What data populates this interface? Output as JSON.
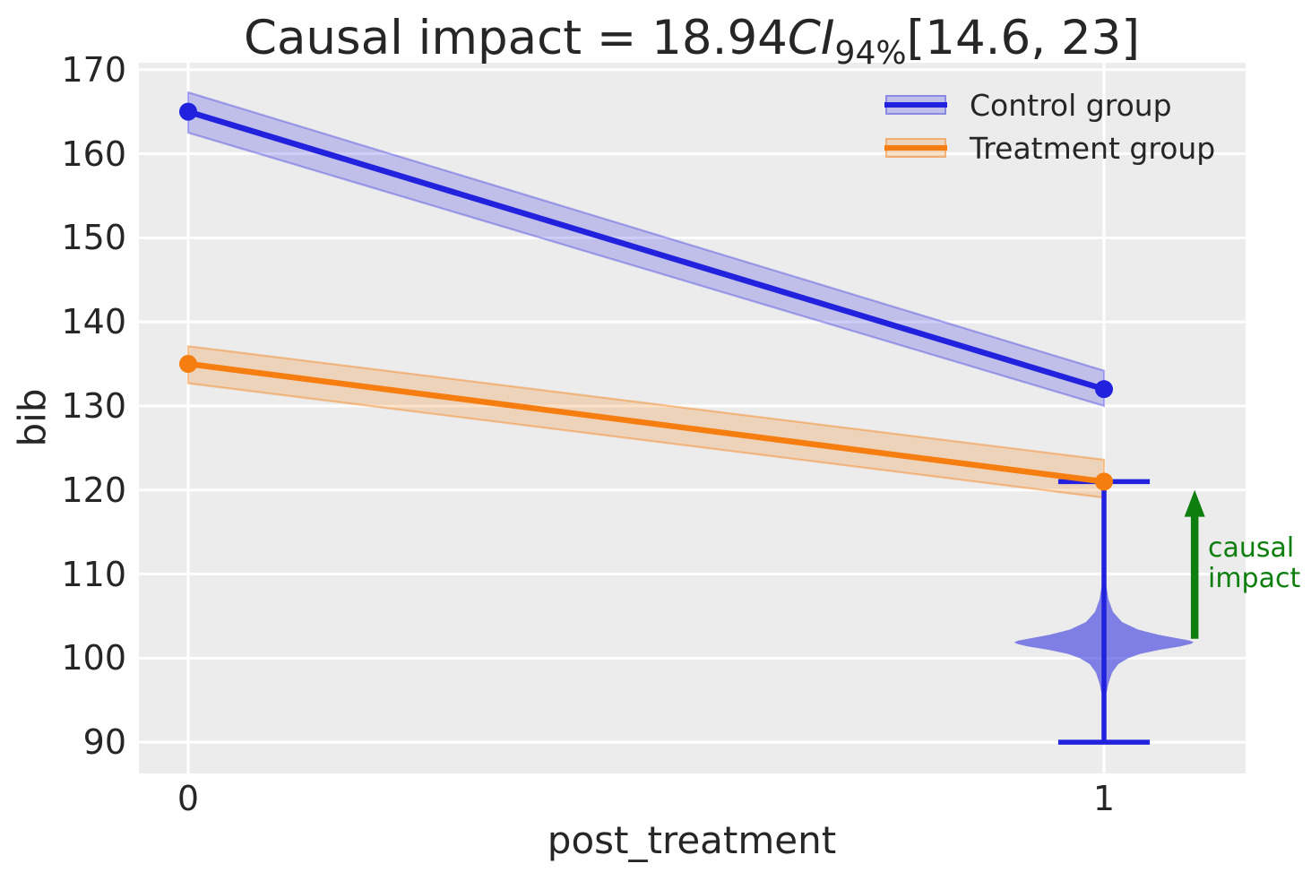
{
  "title": {
    "prefix": "Causal impact = 18.94",
    "ci": "CI",
    "ci_sub": "94%",
    "suffix": "[14.6, 23]"
  },
  "axes": {
    "xlabel": "post_treatment",
    "ylabel": "bib"
  },
  "legend": {
    "items": [
      {
        "label": "Control group"
      },
      {
        "label": "Treatment group"
      }
    ]
  },
  "annotation": {
    "line1": "causal",
    "line2": "impact"
  },
  "colors": {
    "plot_bg": "#ececec",
    "grid": "#ffffff",
    "text": "#262626",
    "control": "#2222de",
    "control_band_fill": "rgba(34,34,222,0.22)",
    "control_band_edge": "rgba(34,34,222,0.34)",
    "treatment": "#f67d0f",
    "treatment_band_fill": "rgba(246,125,15,0.22)",
    "treatment_band_edge": "rgba(246,125,15,0.42)",
    "violin_fill": "rgba(34,34,222,0.54)",
    "arrow_green": "#0e7e0e"
  },
  "chart_data": {
    "type": "line",
    "title": "Causal impact = 18.94 CI 94% [14.6, 23]",
    "xlabel": "post_treatment",
    "ylabel": "bib",
    "x_ticks": [
      0,
      1
    ],
    "y_ticks": [
      90,
      100,
      110,
      120,
      130,
      140,
      150,
      160,
      170
    ],
    "xlim": [
      -0.054,
      1.155
    ],
    "ylim": [
      86.3,
      170.8
    ],
    "grid": true,
    "legend_position": "upper right",
    "series": [
      {
        "name": "Control group",
        "x": [
          0,
          1
        ],
        "y": [
          165,
          132
        ],
        "band_lower": [
          162.5,
          130.0
        ],
        "band_upper": [
          167.3,
          134.2
        ]
      },
      {
        "name": "Treatment group",
        "x": [
          0,
          1
        ],
        "y": [
          135,
          121
        ],
        "band_lower": [
          132.7,
          119.1
        ],
        "band_upper": [
          137.1,
          123.6
        ]
      }
    ],
    "violin": {
      "x": 1,
      "whisker_low": 90,
      "whisker_high": 121,
      "cap_halfwidth": 0.05,
      "mode": 101.9,
      "max_halfwidth": 0.098,
      "profile": [
        [
          111.0,
          0.008
        ],
        [
          109.0,
          0.02
        ],
        [
          107.0,
          0.05
        ],
        [
          105.5,
          0.1
        ],
        [
          104.3,
          0.2
        ],
        [
          103.4,
          0.38
        ],
        [
          102.8,
          0.6
        ],
        [
          102.4,
          0.8
        ],
        [
          102.1,
          0.95
        ],
        [
          101.9,
          1.0
        ],
        [
          101.7,
          0.97
        ],
        [
          101.4,
          0.85
        ],
        [
          101.0,
          0.62
        ],
        [
          100.5,
          0.4
        ],
        [
          100.0,
          0.27
        ],
        [
          99.3,
          0.16
        ],
        [
          98.3,
          0.09
        ],
        [
          97.0,
          0.05
        ],
        [
          95.5,
          0.02
        ],
        [
          93.5,
          0.008
        ]
      ]
    },
    "impact_arrow": {
      "x": 1.099,
      "from_y": 102.3,
      "to_y": 119.8,
      "label": "causal impact"
    }
  }
}
